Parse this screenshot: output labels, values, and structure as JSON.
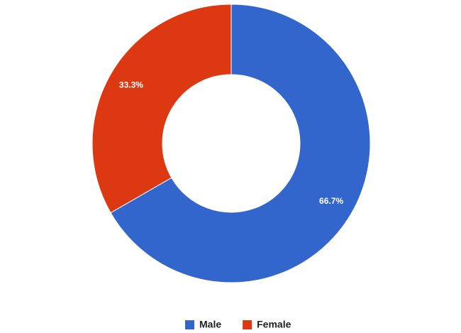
{
  "chart_data": {
    "type": "donut",
    "categories": [
      "Male",
      "Female"
    ],
    "values": [
      66.7,
      33.3
    ],
    "value_labels": [
      "66.7%",
      "33.3%"
    ],
    "colors": [
      "#3366cc",
      "#dc3912"
    ],
    "legend": "bottom"
  }
}
